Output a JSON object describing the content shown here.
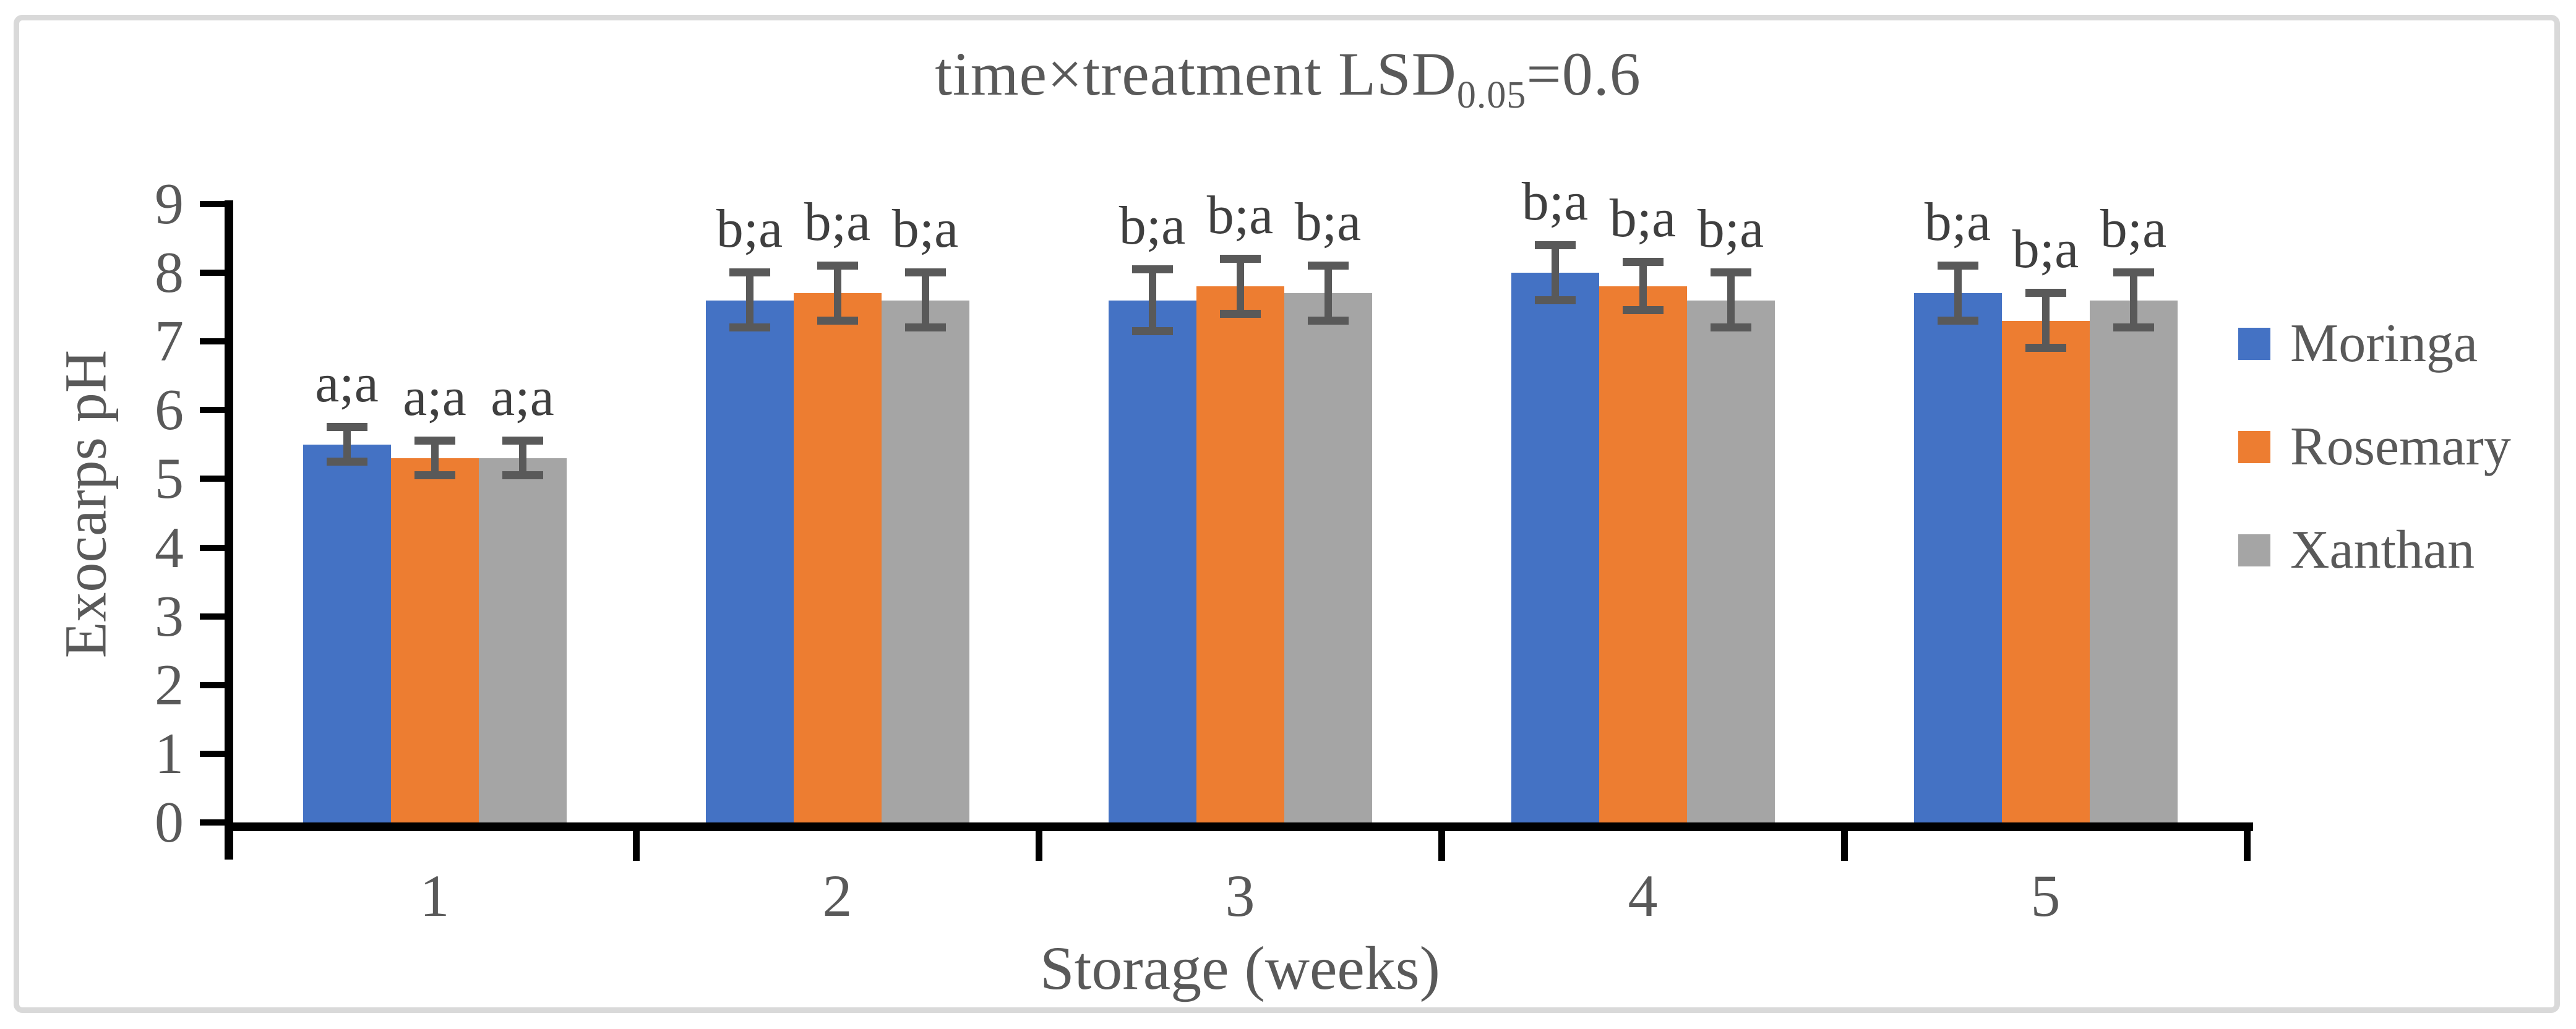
{
  "title": {
    "prefix": "time×treatment LSD",
    "subscript": "0.05",
    "suffix": "=0.6"
  },
  "chart_data": {
    "type": "bar",
    "title": "time×treatment LSD0.05=0.6",
    "xlabel": "Storage (weeks)",
    "ylabel": "Exocarps pH",
    "categories": [
      "1",
      "2",
      "3",
      "4",
      "5"
    ],
    "series": [
      {
        "name": "Moringa",
        "color": "#4472C4",
        "values": [
          5.5,
          7.6,
          7.6,
          8.0,
          7.7
        ],
        "errors": [
          0.25,
          0.4,
          0.45,
          0.4,
          0.4
        ],
        "labels": [
          "a;a",
          "b;a",
          "b;a",
          "b;a",
          "b;a"
        ]
      },
      {
        "name": "Rosemary",
        "color": "#ED7D31",
        "values": [
          5.3,
          7.7,
          7.8,
          7.8,
          7.3
        ],
        "errors": [
          0.25,
          0.4,
          0.4,
          0.35,
          0.4
        ],
        "labels": [
          "a;a",
          "b;a",
          "b;a",
          "b;a",
          "b;a"
        ]
      },
      {
        "name": "Xanthan",
        "color": "#A5A5A5",
        "values": [
          5.3,
          7.6,
          7.7,
          7.6,
          7.6
        ],
        "errors": [
          0.25,
          0.4,
          0.4,
          0.4,
          0.4
        ],
        "labels": [
          "a;a",
          "b;a",
          "b;a",
          "b;a",
          "b;a"
        ]
      }
    ],
    "ylim": [
      0,
      9
    ],
    "yticks": [
      "0",
      "1",
      "2",
      "3",
      "4",
      "5",
      "6",
      "7",
      "8",
      "9"
    ],
    "grid": false,
    "legend_position": "right",
    "error_bars": true
  },
  "colors": {
    "text": "#595959",
    "annotation": "#3f3f3f",
    "error_bar": "#595959",
    "axis": "#000000",
    "border": "#D9D9D9",
    "background": "#FFFFFF"
  }
}
